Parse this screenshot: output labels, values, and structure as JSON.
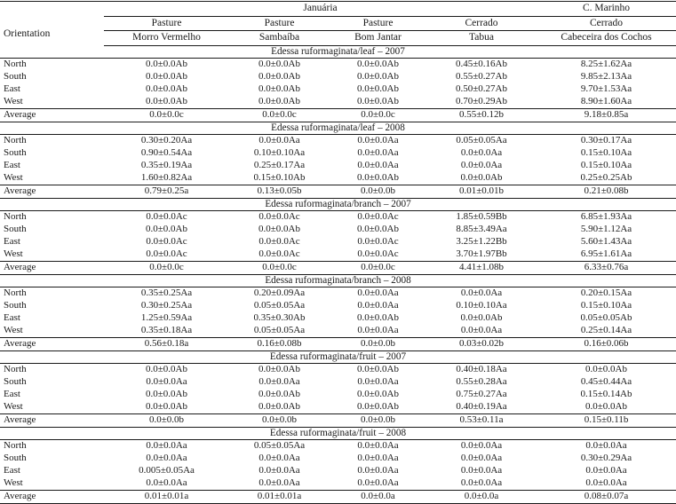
{
  "colors": {
    "background": "#ffffff",
    "text": "#1a1a1a",
    "rule": "#1a1a1a"
  },
  "table": {
    "orientation_header": "Orientation",
    "location_groups": [
      {
        "label": "Januária",
        "colspan": 4
      },
      {
        "label": "C. Marinho",
        "colspan": 1
      }
    ],
    "habitat_row": [
      "Pasture",
      "Pasture",
      "Pasture",
      "Cerrado",
      "Cerrado"
    ],
    "site_row": [
      "Morro Vermelho",
      "Sambaíba",
      "Bom Jantar",
      "Tabua",
      "Cabeceira dos Cochos"
    ],
    "sections": [
      {
        "title": "Edessa ruformaginata/leaf – 2007",
        "rows": [
          {
            "label": "North",
            "values": [
              "0.0±0.0Ab",
              "0.0±0.0Ab",
              "0.0±0.0Ab",
              "0.45±0.16Ab",
              "8.25±1.62Aa"
            ]
          },
          {
            "label": "South",
            "values": [
              "0.0±0.0Ab",
              "0.0±0.0Ab",
              "0.0±0.0Ab",
              "0.55±0.27Ab",
              "9.85±2.13Aa"
            ]
          },
          {
            "label": "East",
            "values": [
              "0.0±0.0Ab",
              "0.0±0.0Ab",
              "0.0±0.0Ab",
              "0.50±0.27Ab",
              "9.70±1.53Aa"
            ]
          },
          {
            "label": "West",
            "values": [
              "0.0±0.0Ab",
              "0.0±0.0Ab",
              "0.0±0.0Ab",
              "0.70±0.29Ab",
              "8.90±1.60Aa"
            ]
          },
          {
            "label": "Average",
            "values": [
              "0.0±0.0c",
              "0.0±0.0c",
              "0.0±0.0c",
              "0.55±0.12b",
              "9.18±0.85a"
            ]
          }
        ]
      },
      {
        "title": "Edessa ruformaginata/leaf – 2008",
        "rows": [
          {
            "label": "North",
            "values": [
              "0.30±0.20Aa",
              "0.0±0.0Aa",
              "0.0±0.0Aa",
              "0.05±0.05Aa",
              "0.30±0.17Aa"
            ]
          },
          {
            "label": "South",
            "values": [
              "0.90±0.54Aa",
              "0.10±0.10Aa",
              "0.0±0.0Aa",
              "0.0±0.0Aa",
              "0.15±0.10Aa"
            ]
          },
          {
            "label": "East",
            "values": [
              "0.35±0.19Aa",
              "0.25±0.17Aa",
              "0.0±0.0Aa",
              "0.0±0.0Aa",
              "0.15±0.10Aa"
            ]
          },
          {
            "label": "West",
            "values": [
              "1.60±0.82Aa",
              "0.15±0.10Ab",
              "0.0±0.0Ab",
              "0.0±0.0Ab",
              "0.25±0.25Ab"
            ]
          },
          {
            "label": "Average",
            "values": [
              "0.79±0.25a",
              "0.13±0.05b",
              "0.0±0.0b",
              "0.01±0.01b",
              "0.21±0.08b"
            ]
          }
        ]
      },
      {
        "title": "Edessa ruformaginata/branch – 2007",
        "rows": [
          {
            "label": "North",
            "values": [
              "0.0±0.0Ac",
              "0.0±0.0Ac",
              "0.0±0.0Ac",
              "1.85±0.59Bb",
              "6.85±1.93Aa"
            ]
          },
          {
            "label": "South",
            "values": [
              "0.0±0.0Ab",
              "0.0±0.0Ab",
              "0.0±0.0Ab",
              "8.85±3.49Aa",
              "5.90±1.12Aa"
            ]
          },
          {
            "label": "East",
            "values": [
              "0.0±0.0Ac",
              "0.0±0.0Ac",
              "0.0±0.0Ac",
              "3.25±1.22Bb",
              "5.60±1.43Aa"
            ]
          },
          {
            "label": "West",
            "values": [
              "0.0±0.0Ac",
              "0.0±0.0Ac",
              "0.0±0.0Ac",
              "3.70±1.97Bb",
              "6.95±1.61Aa"
            ]
          },
          {
            "label": "Average",
            "values": [
              "0.0±0.0c",
              "0.0±0.0c",
              "0.0±0.0c",
              "4.41±1.08b",
              "6.33±0.76a"
            ]
          }
        ]
      },
      {
        "title": "Edessa ruformaginata/branch – 2008",
        "rows": [
          {
            "label": "North",
            "values": [
              "0.35±0.25Aa",
              "0.20±0.09Aa",
              "0.0±0.0Aa",
              "0.0±0.0Aa",
              "0.20±0.15Aa"
            ]
          },
          {
            "label": "South",
            "values": [
              "0.30±0.25Aa",
              "0.05±0.05Aa",
              "0.0±0.0Aa",
              "0.10±0.10Aa",
              "0.15±0.10Aa"
            ]
          },
          {
            "label": "East",
            "values": [
              "1.25±0.59Aa",
              "0.35±0.30Ab",
              "0.0±0.0Ab",
              "0.0±0.0Ab",
              "0.05±0.05Ab"
            ]
          },
          {
            "label": "West",
            "values": [
              "0.35±0.18Aa",
              "0.05±0.05Aa",
              "0.0±0.0Aa",
              "0.0±0.0Aa",
              "0.25±0.14Aa"
            ]
          },
          {
            "label": "Average",
            "values": [
              "0.56±0.18a",
              "0.16±0.08b",
              "0.0±0.0b",
              "0.03±0.02b",
              "0.16±0.06b"
            ]
          }
        ]
      },
      {
        "title": "Edessa ruformaginata/fruit – 2007",
        "rows": [
          {
            "label": "North",
            "values": [
              "0.0±0.0Ab",
              "0.0±0.0Ab",
              "0.0±0.0Ab",
              "0.40±0.18Aa",
              "0.0±0.0Ab"
            ]
          },
          {
            "label": "South",
            "values": [
              "0.0±0.0Aa",
              "0.0±0.0Aa",
              "0.0±0.0Aa",
              "0.55±0.28Aa",
              "0.45±0.44Aa"
            ]
          },
          {
            "label": "East",
            "values": [
              "0.0±0.0Ab",
              "0.0±0.0Ab",
              "0.0±0.0Ab",
              "0.75±0.27Aa",
              "0.15±0.14Ab"
            ]
          },
          {
            "label": "West",
            "values": [
              "0.0±0.0Ab",
              "0.0±0.0Ab",
              "0.0±0.0Ab",
              "0.40±0.19Aa",
              "0.0±0.0Ab"
            ]
          },
          {
            "label": "Average",
            "values": [
              "0.0±0.0b",
              "0.0±0.0b",
              "0.0±0.0b",
              "0.53±0.11a",
              "0.15±0.11b"
            ]
          }
        ]
      },
      {
        "title": "Edessa ruformaginata/fruit – 2008",
        "rows": [
          {
            "label": "North",
            "values": [
              "0.0±0.0Aa",
              "0.05±0.05Aa",
              "0.0±0.0Aa",
              "0.0±0.0Aa",
              "0.0±0.0Aa"
            ]
          },
          {
            "label": "South",
            "values": [
              "0.0±0.0Aa",
              "0.0±0.0Aa",
              "0.0±0.0Aa",
              "0.0±0.0Aa",
              "0.30±0.29Aa"
            ]
          },
          {
            "label": "East",
            "values": [
              "0.005±0.05Aa",
              "0.0±0.0Aa",
              "0.0±0.0Aa",
              "0.0±0.0Aa",
              "0.0±0.0Aa"
            ]
          },
          {
            "label": "West",
            "values": [
              "0.0±0.0Aa",
              "0.0±0.0Aa",
              "0.0±0.0Aa",
              "0.0±0.0Aa",
              "0.0±0.0Aa"
            ]
          },
          {
            "label": "Average",
            "values": [
              "0.01±0.01a",
              "0.01±0.01a",
              "0.0±0.0a",
              "0.0±0.0a",
              "0.08±0.07a"
            ]
          }
        ]
      }
    ]
  }
}
